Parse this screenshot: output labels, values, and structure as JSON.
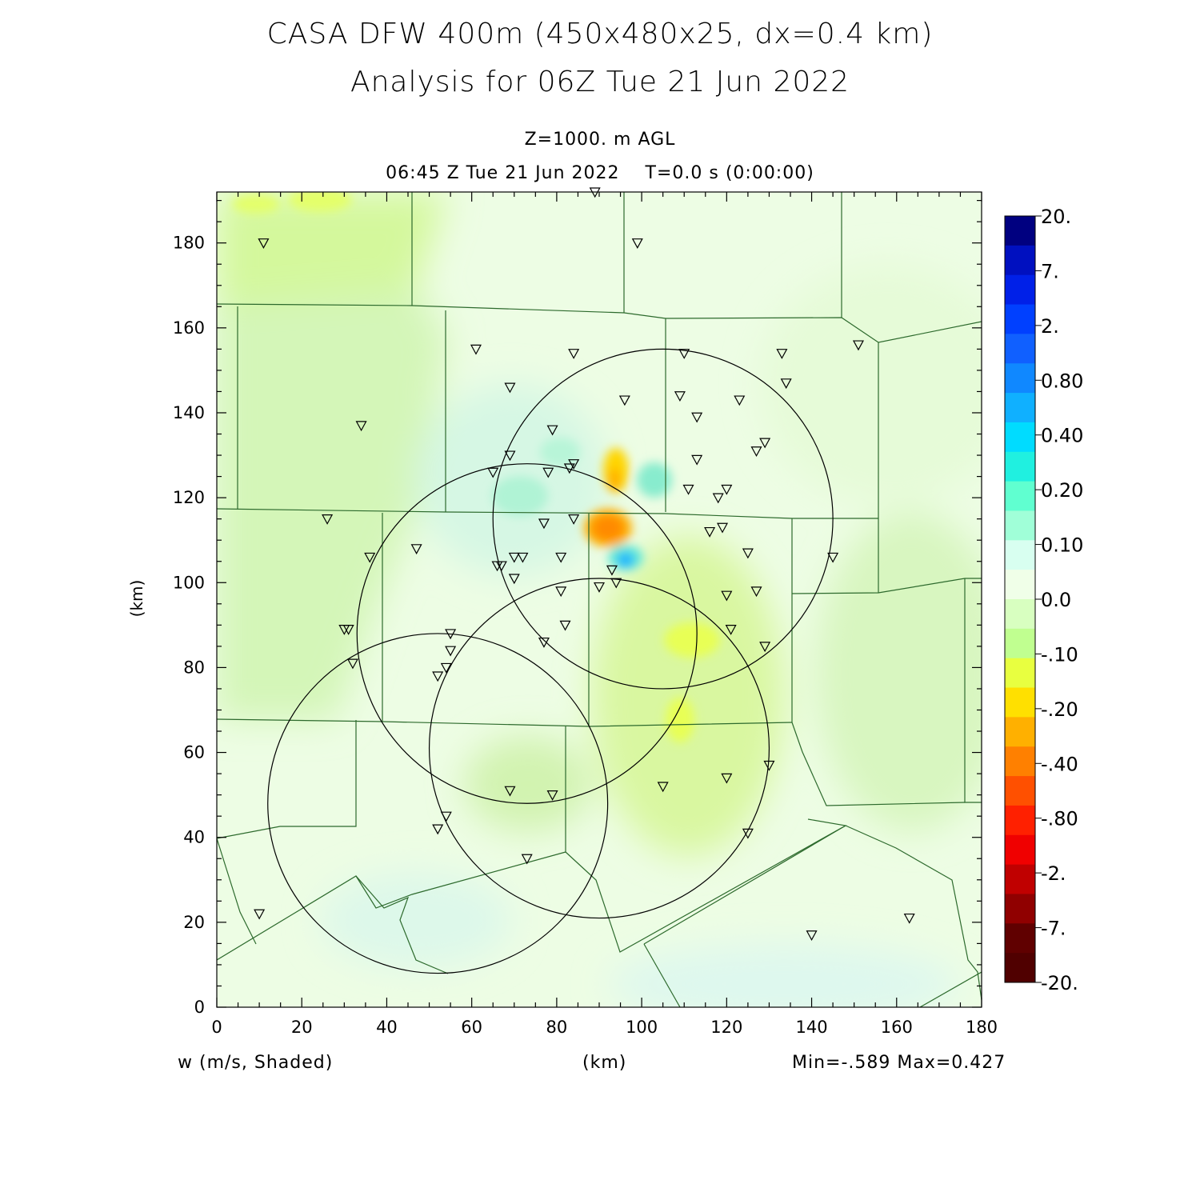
{
  "header": {
    "title": "CASA DFW 400m (450x480x25, dx=0.4 km)",
    "subtitle": "Analysis for 06Z Tue 21 Jun 2022",
    "level": "Z=1000. m AGL",
    "valid_time": "06:45 Z Tue 21 Jun 2022    T=0.0 s (0:00:00)"
  },
  "footer": {
    "variable": "w (m/s, Shaded)",
    "x_unit": "(km)",
    "minmax": "Min=-.589 Max=0.427"
  },
  "chart_data": {
    "type": "heatmap",
    "xlabel": "(km)",
    "ylabel": "(km)",
    "xlim": [
      0,
      180
    ],
    "ylim": [
      0,
      192
    ],
    "x_ticks": [
      "0",
      "20",
      "40",
      "60",
      "80",
      "100",
      "120",
      "140",
      "160",
      "180"
    ],
    "y_ticks": [
      "0",
      "20",
      "40",
      "60",
      "80",
      "100",
      "120",
      "140",
      "160",
      "180"
    ],
    "field_range": {
      "min": -0.589,
      "max": 0.427
    },
    "colorbar": {
      "labels": [
        "20.",
        "7.",
        "2.",
        "0.80",
        "0.40",
        "0.20",
        "0.10",
        "0.0",
        "-.10",
        "-.20",
        "-.40",
        "-.80",
        "-2.",
        "-7.",
        "-20."
      ],
      "colors": [
        "#000080",
        "#0010c0",
        "#0020e8",
        "#0040ff",
        "#1060ff",
        "#1088ff",
        "#10b0ff",
        "#00dcff",
        "#20f0e0",
        "#60ffd0",
        "#a0ffd8",
        "#d8fff0",
        "#f0ffe8",
        "#d8ffc0",
        "#c0ff90",
        "#e8ff40",
        "#ffe000",
        "#ffb000",
        "#ff8000",
        "#ff5000",
        "#ff2000",
        "#f00000",
        "#c00000",
        "#900000",
        "#600000",
        "#500000"
      ]
    },
    "features": [
      {
        "name": "downdraft max",
        "x": 92,
        "y": 113,
        "value": -0.589
      },
      {
        "name": "downdraft",
        "x": 93,
        "y": 124,
        "value": -0.3
      },
      {
        "name": "updraft max",
        "x": 96,
        "y": 106,
        "value": 0.427
      },
      {
        "name": "updraft",
        "x": 104,
        "y": 125,
        "value": 0.2
      },
      {
        "name": "weak downdraft region",
        "x": 110,
        "y": 72,
        "value": -0.15
      },
      {
        "name": "weak downdraft region",
        "x": 10,
        "y": 190,
        "value": -0.15
      }
    ],
    "radar_rings": [
      {
        "cx": 52,
        "cy": 48,
        "r": 40
      },
      {
        "cx": 90,
        "cy": 61,
        "r": 40
      },
      {
        "cx": 73,
        "cy": 88,
        "r": 40
      },
      {
        "cx": 105,
        "cy": 115,
        "r": 40
      }
    ],
    "stations": [
      [
        11,
        180
      ],
      [
        99,
        180
      ],
      [
        89,
        192
      ],
      [
        61,
        155
      ],
      [
        84,
        154
      ],
      [
        110,
        154
      ],
      [
        133,
        154
      ],
      [
        151,
        156
      ],
      [
        134,
        147
      ],
      [
        69,
        146
      ],
      [
        96,
        143
      ],
      [
        109,
        144
      ],
      [
        123,
        143
      ],
      [
        34,
        137
      ],
      [
        79,
        136
      ],
      [
        113,
        139
      ],
      [
        69,
        130
      ],
      [
        65,
        126
      ],
      [
        78,
        126
      ],
      [
        83,
        127
      ],
      [
        84,
        128
      ],
      [
        113,
        129
      ],
      [
        127,
        131
      ],
      [
        129,
        133
      ],
      [
        111,
        122
      ],
      [
        120,
        122
      ],
      [
        118,
        120
      ],
      [
        26,
        115
      ],
      [
        84,
        115
      ],
      [
        77,
        114
      ],
      [
        116,
        112
      ],
      [
        119,
        113
      ],
      [
        47,
        108
      ],
      [
        36,
        106
      ],
      [
        70,
        106
      ],
      [
        72,
        106
      ],
      [
        81,
        106
      ],
      [
        66,
        104
      ],
      [
        67,
        104
      ],
      [
        125,
        107
      ],
      [
        145,
        106
      ],
      [
        70,
        101
      ],
      [
        93,
        103
      ],
      [
        94,
        100
      ],
      [
        90,
        99
      ],
      [
        81,
        98
      ],
      [
        120,
        97
      ],
      [
        127,
        98
      ],
      [
        30,
        89
      ],
      [
        31,
        89
      ],
      [
        82,
        90
      ],
      [
        121,
        89
      ],
      [
        55,
        88
      ],
      [
        77,
        86
      ],
      [
        129,
        85
      ],
      [
        55,
        84
      ],
      [
        32,
        81
      ],
      [
        54,
        80
      ],
      [
        52,
        78
      ],
      [
        130,
        57
      ],
      [
        120,
        54
      ],
      [
        69,
        51
      ],
      [
        79,
        50
      ],
      [
        105,
        52
      ],
      [
        54,
        45
      ],
      [
        52,
        42
      ],
      [
        125,
        41
      ],
      [
        73,
        35
      ],
      [
        10,
        22
      ],
      [
        163,
        21
      ],
      [
        140,
        17
      ]
    ]
  }
}
